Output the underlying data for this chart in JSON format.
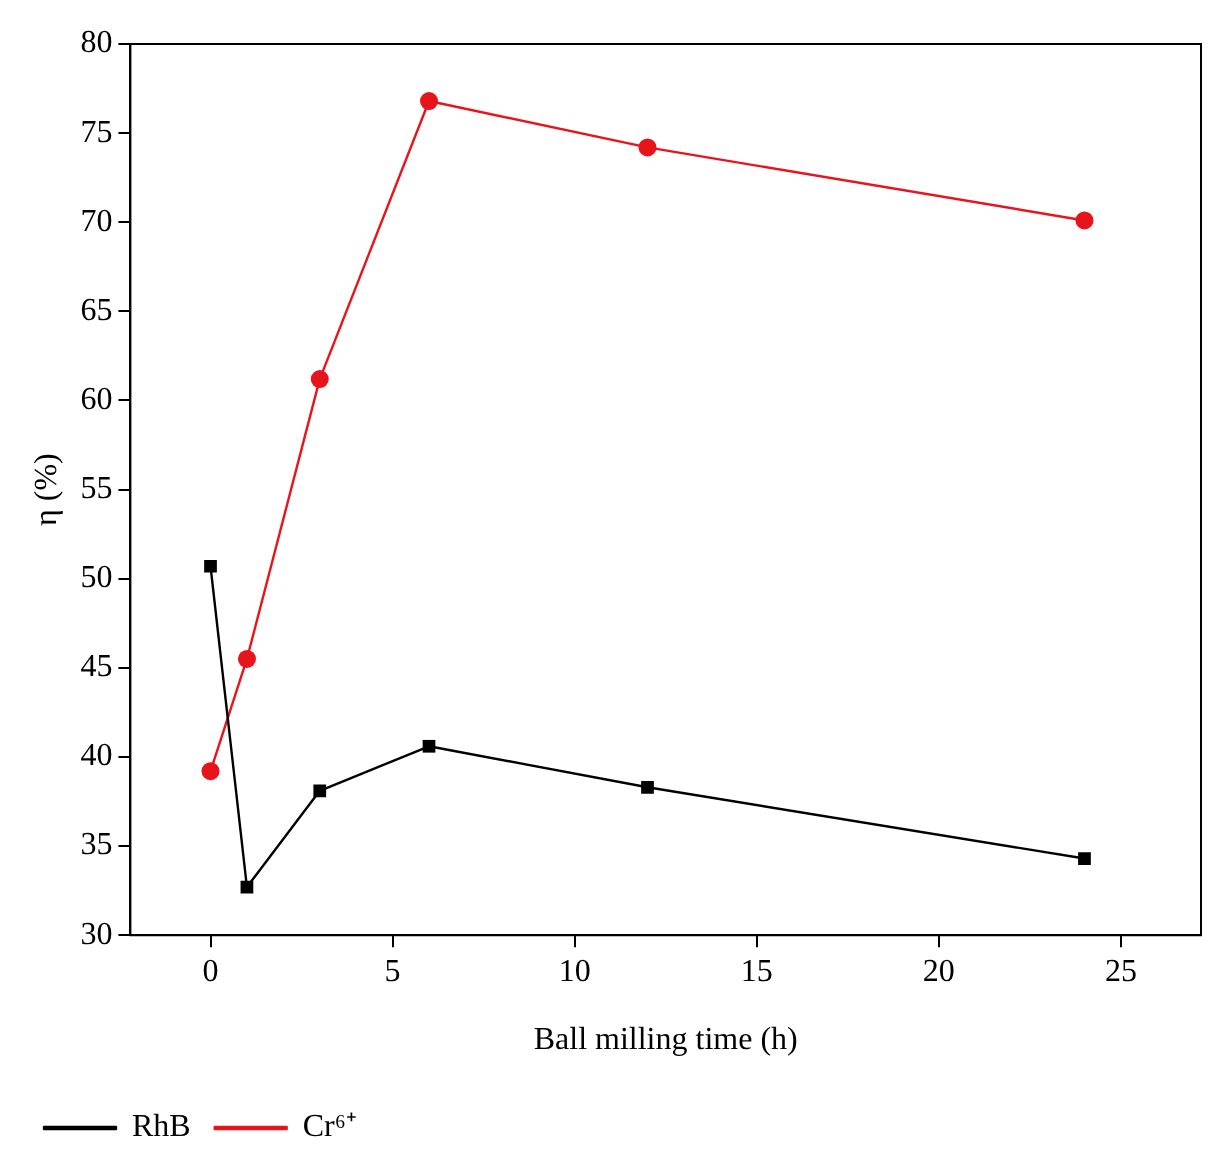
{
  "chart_data": {
    "type": "line",
    "xlabel": "Ball milling time (h)",
    "ylabel": "η (%)",
    "xlim": [
      -2.2,
      27.2
    ],
    "xticks": [
      0,
      5,
      10,
      15,
      20,
      25
    ],
    "ylim": [
      30,
      80
    ],
    "yticks": [
      30,
      35,
      40,
      45,
      50,
      55,
      60,
      65,
      70,
      75,
      80
    ],
    "grid": false,
    "legend": "bottom left",
    "line_style": "solid",
    "series": [
      {
        "name": "RhB",
        "color": "#000000",
        "marker": "square",
        "x": [
          0,
          1,
          3,
          6,
          12,
          24
        ],
        "values": [
          50.7,
          32.7,
          38.1,
          40.6,
          38.3,
          34.3
        ]
      },
      {
        "name": "Cr⁶⁺",
        "color": "#e8141c",
        "marker": "circle",
        "x": [
          0,
          1,
          3,
          6,
          12,
          24
        ],
        "values": [
          39.2,
          45.5,
          61.2,
          76.8,
          74.2,
          70.1
        ]
      }
    ]
  }
}
